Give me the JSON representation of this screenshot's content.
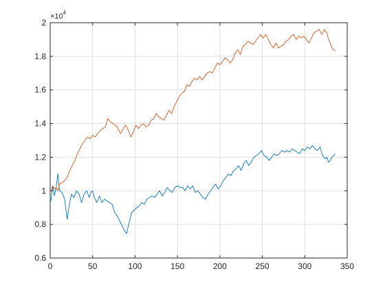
{
  "figure": {
    "exponent_base": "×10",
    "exponent_power": "4"
  },
  "chart_data": {
    "type": "line",
    "title": "",
    "xlabel": "",
    "ylabel": "",
    "xlim": [
      0,
      350
    ],
    "ylim": [
      6000,
      20000
    ],
    "xticks": [
      0,
      50,
      100,
      150,
      200,
      250,
      300,
      350
    ],
    "xtick_labels": [
      "0",
      "50",
      "100",
      "150",
      "200",
      "250",
      "300",
      "350"
    ],
    "yticks": [
      6000,
      8000,
      10000,
      12000,
      14000,
      16000,
      18000,
      20000
    ],
    "ytick_labels": [
      "0.6",
      "0.8",
      "1",
      "1.2",
      "1.4",
      "1.6",
      "1.8",
      "2"
    ],
    "y_exponent": 4,
    "grid": true,
    "legend": "none",
    "series": [
      {
        "color": "#0072BD",
        "x": [
          1,
          3,
          5,
          7,
          9,
          11,
          14,
          17,
          20,
          22,
          25,
          28,
          31,
          34,
          37,
          40,
          43,
          46,
          48,
          50,
          52,
          55,
          58,
          61,
          64,
          67,
          70,
          73,
          76,
          79,
          82,
          85,
          88,
          90,
          92,
          94,
          96,
          98,
          100,
          102,
          105,
          108,
          111,
          114,
          117,
          120,
          123,
          126,
          129,
          132,
          135,
          138,
          141,
          144,
          147,
          150,
          153,
          156,
          159,
          162,
          165,
          168,
          171,
          174,
          177,
          180,
          183,
          186,
          189,
          192,
          195,
          198,
          201,
          204,
          207,
          210,
          213,
          216,
          219,
          222,
          225,
          228,
          231,
          234,
          237,
          240,
          243,
          246,
          249,
          252,
          255,
          258,
          261,
          264,
          267,
          270,
          273,
          276,
          279,
          282,
          285,
          288,
          291,
          294,
          297,
          300,
          303,
          306,
          309,
          312,
          315,
          318,
          321,
          324,
          326,
          328,
          330,
          332,
          334,
          336
        ],
        "y": [
          9400,
          10300,
          9700,
          10200,
          11000,
          10000,
          9900,
          9500,
          8300,
          9000,
          9800,
          9600,
          10000,
          9800,
          9300,
          9800,
          10000,
          9600,
          9900,
          10000,
          9600,
          9300,
          9700,
          9300,
          9500,
          9400,
          9300,
          9200,
          8700,
          8500,
          8200,
          7900,
          7600,
          7450,
          7900,
          8300,
          8700,
          8800,
          8900,
          9000,
          9100,
          9300,
          9200,
          9500,
          9600,
          9700,
          9600,
          9800,
          10000,
          9700,
          9900,
          10200,
          10000,
          9900,
          10200,
          10300,
          10200,
          10200,
          10000,
          10300,
          10100,
          10300,
          9900,
          10000,
          9800,
          9600,
          9500,
          9800,
          10000,
          10200,
          10400,
          10100,
          10300,
          10600,
          10800,
          11000,
          10900,
          11200,
          11300,
          11500,
          11200,
          11600,
          11800,
          11500,
          11700,
          12000,
          12100,
          12200,
          12400,
          12100,
          12000,
          11800,
          12000,
          12200,
          12100,
          12200,
          12400,
          12300,
          12400,
          12300,
          12500,
          12400,
          12300,
          12200,
          12500,
          12400,
          12600,
          12500,
          12700,
          12500,
          12400,
          12600,
          12100,
          11900,
          12000,
          11700,
          11800,
          12000,
          12100,
          12200
        ]
      },
      {
        "color": "#D95319",
        "x": [
          1,
          3,
          5,
          7,
          9,
          11,
          14,
          17,
          20,
          23,
          26,
          29,
          32,
          35,
          38,
          41,
          44,
          47,
          50,
          53,
          56,
          59,
          62,
          65,
          68,
          71,
          74,
          77,
          80,
          83,
          86,
          89,
          92,
          95,
          98,
          101,
          104,
          107,
          110,
          113,
          116,
          119,
          122,
          125,
          128,
          131,
          134,
          137,
          140,
          143,
          146,
          149,
          152,
          155,
          158,
          161,
          164,
          167,
          170,
          173,
          176,
          179,
          182,
          185,
          188,
          191,
          194,
          197,
          200,
          203,
          206,
          209,
          212,
          215,
          218,
          221,
          224,
          227,
          230,
          233,
          236,
          239,
          242,
          245,
          248,
          251,
          254,
          257,
          260,
          263,
          266,
          269,
          272,
          275,
          278,
          281,
          284,
          287,
          290,
          293,
          296,
          299,
          302,
          305,
          308,
          311,
          314,
          317,
          320,
          323,
          326,
          328,
          330,
          332,
          334,
          336
        ],
        "y": [
          10000,
          10300,
          10100,
          10200,
          10000,
          10400,
          10500,
          10600,
          10800,
          11200,
          11500,
          11800,
          12200,
          12500,
          12800,
          13000,
          13200,
          13100,
          13300,
          13200,
          13400,
          13600,
          13700,
          13800,
          14300,
          14100,
          14000,
          13900,
          13700,
          13400,
          13700,
          13900,
          13600,
          13200,
          13500,
          13900,
          13700,
          13900,
          14000,
          13800,
          13900,
          14200,
          14300,
          14600,
          14400,
          14300,
          14200,
          14500,
          14800,
          14600,
          15000,
          15300,
          15600,
          15800,
          15900,
          16300,
          16200,
          16500,
          16700,
          16600,
          16800,
          16600,
          16800,
          17000,
          17100,
          17000,
          17300,
          17600,
          17500,
          17700,
          17900,
          17800,
          17600,
          17800,
          18200,
          18400,
          18100,
          18600,
          18700,
          18900,
          18800,
          18700,
          18900,
          19100,
          19300,
          19100,
          19300,
          19000,
          18700,
          18500,
          18800,
          18500,
          18600,
          18700,
          18900,
          19000,
          19200,
          19300,
          19000,
          19200,
          19100,
          19200,
          19000,
          18800,
          19100,
          19400,
          19500,
          19600,
          19300,
          19600,
          19400,
          19000,
          18800,
          18500,
          18400,
          18300
        ]
      }
    ]
  }
}
